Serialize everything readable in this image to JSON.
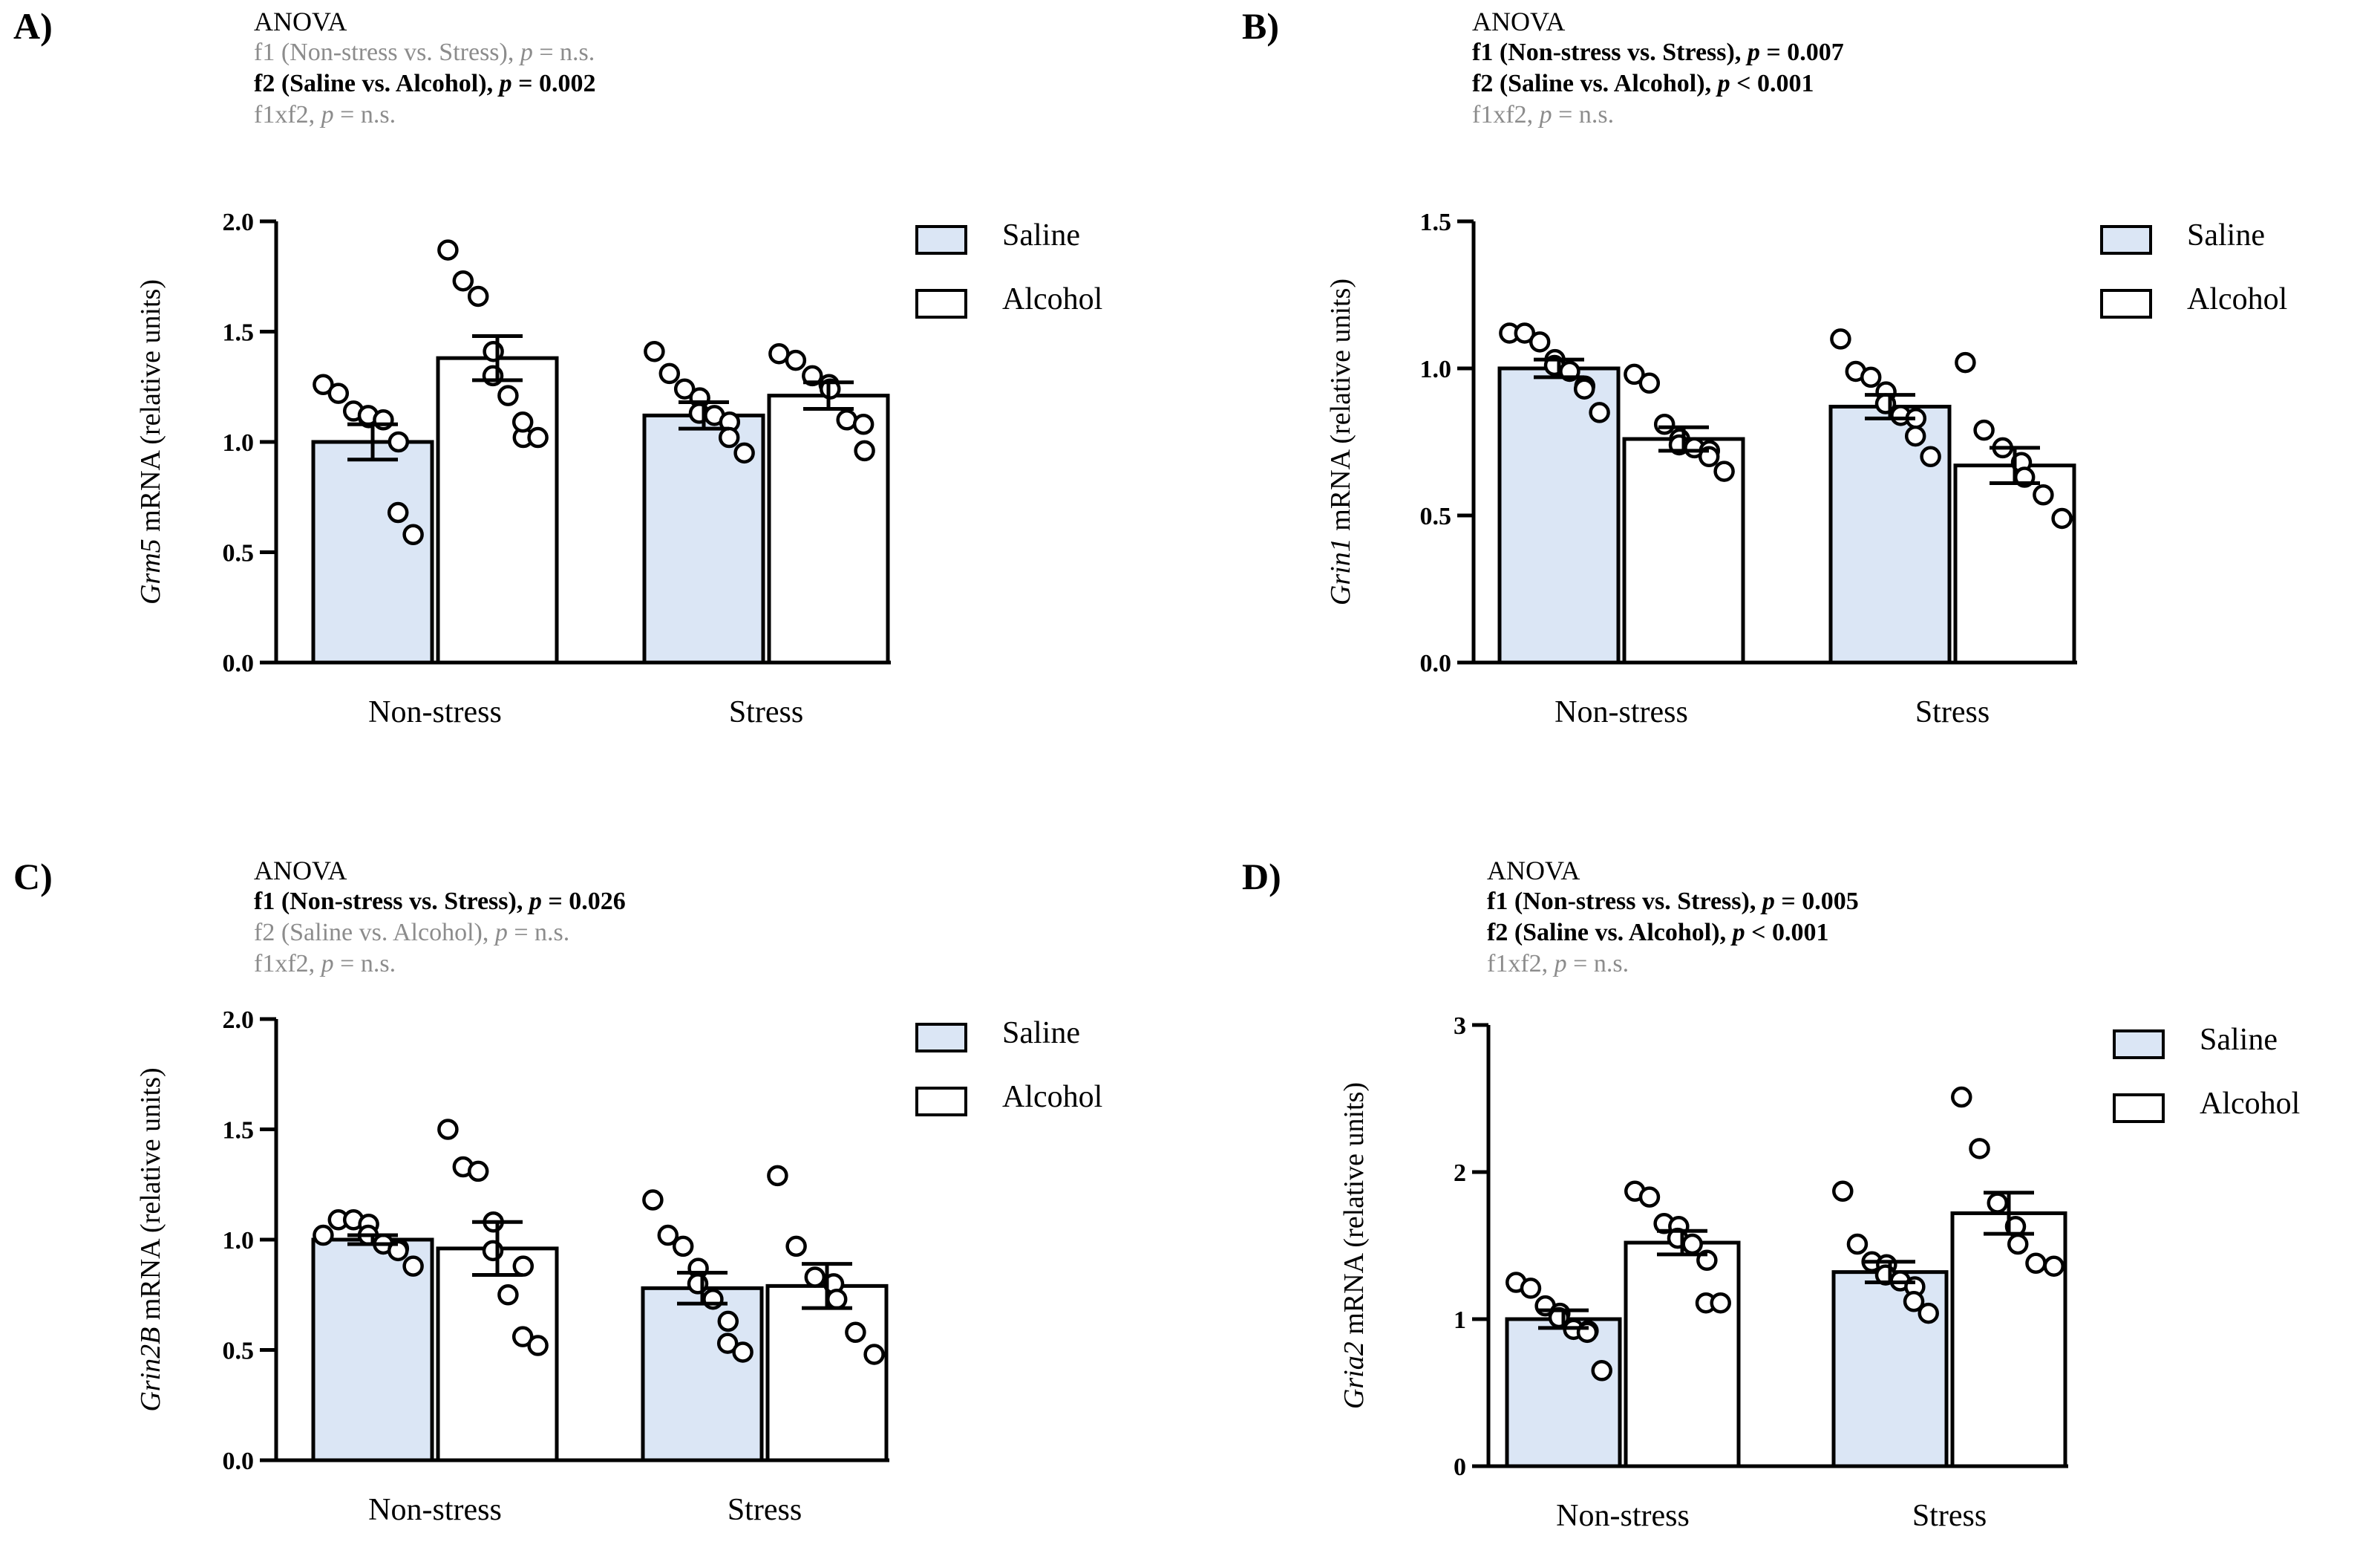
{
  "colors": {
    "saline": "#dbe6f5",
    "alcohol": "#ffffff",
    "stroke": "#000000",
    "ns_text": "#8c8c8c"
  },
  "chart_data": [
    {
      "panel": "A)",
      "type": "bar",
      "title": "ANOVA",
      "anova": [
        {
          "label": "f1 (Non-stress vs. Stress), ",
          "p_prefix": "p",
          "p_value": " = n.s.",
          "significant": false
        },
        {
          "label": "f2 (Saline vs. Alcohol), ",
          "p_prefix": "p",
          "p_value": " = 0.002",
          "significant": true
        },
        {
          "label": "f1xf2, ",
          "p_prefix": "p",
          "p_value": " = n.s.",
          "significant": false
        }
      ],
      "ylabel_gene": "Grm5",
      "ylabel_rest": " mRNA (relative units)",
      "ylim": [
        0,
        2.0
      ],
      "yticks": [
        0.0,
        0.5,
        1.0,
        1.5,
        2.0
      ],
      "ytick_labels": [
        "0.0",
        "0.5",
        "1.0",
        "1.5",
        "2.0"
      ],
      "categories": [
        "Non-stress",
        "Stress"
      ],
      "legend": [
        "Saline",
        "Alcohol"
      ],
      "series": [
        {
          "name": "Saline",
          "values": [
            1.0,
            1.12
          ],
          "sem": [
            0.08,
            0.06
          ],
          "points": [
            [
              1.26,
              1.22,
              1.14,
              1.11,
              1.12,
              1.1,
              1.0,
              0.68,
              0.58
            ],
            [
              1.41,
              1.31,
              1.24,
              1.2,
              1.13,
              1.12,
              1.09,
              1.02,
              0.95
            ]
          ]
        },
        {
          "name": "Alcohol",
          "values": [
            1.38,
            1.21
          ],
          "sem": [
            0.1,
            0.06
          ],
          "points": [
            [
              1.87,
              1.73,
              1.66,
              1.41,
              1.3,
              1.21,
              1.02,
              1.09,
              1.02
            ],
            [
              1.4,
              1.37,
              1.3,
              1.26,
              1.24,
              1.1,
              1.08,
              0.96
            ]
          ]
        }
      ]
    },
    {
      "panel": "B)",
      "type": "bar",
      "title": "ANOVA",
      "anova": [
        {
          "label": "f1 (Non-stress vs. Stress), ",
          "p_prefix": "p",
          "p_value": " = 0.007",
          "significant": true
        },
        {
          "label": "f2 (Saline vs. Alcohol), ",
          "p_prefix": "p",
          "p_value": " < 0.001",
          "significant": true
        },
        {
          "label": "f1xf2, ",
          "p_prefix": "p",
          "p_value": " = n.s.",
          "significant": false
        }
      ],
      "ylabel_gene": "Grin1",
      "ylabel_rest": " mRNA (relative units)",
      "ylim": [
        0,
        1.5
      ],
      "yticks": [
        0.0,
        0.5,
        1.0,
        1.5
      ],
      "ytick_labels": [
        "0.0",
        "0.5",
        "1.0",
        "1.5"
      ],
      "categories": [
        "Non-stress",
        "Stress"
      ],
      "legend": [
        "Saline",
        "Alcohol"
      ],
      "series": [
        {
          "name": "Saline",
          "values": [
            1.0,
            0.87
          ],
          "sem": [
            0.03,
            0.04
          ],
          "points": [
            [
              1.12,
              1.12,
              1.09,
              1.03,
              1.01,
              0.99,
              0.94,
              0.93,
              0.85
            ],
            [
              1.1,
              0.99,
              0.97,
              0.92,
              0.88,
              0.84,
              0.83,
              0.77,
              0.7
            ]
          ]
        },
        {
          "name": "Alcohol",
          "values": [
            0.76,
            0.67
          ],
          "sem": [
            0.04,
            0.06
          ],
          "points": [
            [
              0.98,
              0.95,
              0.81,
              0.76,
              0.74,
              0.73,
              0.72,
              0.7,
              0.65
            ],
            [
              1.02,
              0.79,
              0.73,
              0.68,
              0.63,
              0.57,
              0.49
            ]
          ]
        }
      ]
    },
    {
      "panel": "C)",
      "type": "bar",
      "title": "ANOVA",
      "anova": [
        {
          "label": "f1 (Non-stress vs. Stress), ",
          "p_prefix": "p",
          "p_value": " = 0.026",
          "significant": true
        },
        {
          "label": "f2 (Saline vs. Alcohol), ",
          "p_prefix": "p",
          "p_value": " = n.s.",
          "significant": false
        },
        {
          "label": "f1xf2, ",
          "p_prefix": "p",
          "p_value": " = n.s.",
          "significant": false
        }
      ],
      "ylabel_gene": "Grin2B",
      "ylabel_rest": " mRNA (relative units)",
      "ylim": [
        0,
        2.0
      ],
      "yticks": [
        0.0,
        0.5,
        1.0,
        1.5,
        2.0
      ],
      "ytick_labels": [
        "0.0",
        "0.5",
        "1.0",
        "1.5",
        "2.0"
      ],
      "categories": [
        "Non-stress",
        "Stress"
      ],
      "legend": [
        "Saline",
        "Alcohol"
      ],
      "series": [
        {
          "name": "Saline",
          "values": [
            1.0,
            0.78
          ],
          "sem": [
            0.02,
            0.07
          ],
          "points": [
            [
              1.02,
              1.09,
              1.09,
              1.07,
              1.02,
              0.98,
              0.96,
              0.95,
              0.88
            ],
            [
              1.18,
              1.02,
              0.97,
              0.87,
              0.8,
              0.73,
              0.63,
              0.53,
              0.49
            ]
          ]
        },
        {
          "name": "Alcohol",
          "values": [
            0.96,
            0.79
          ],
          "sem": [
            0.12,
            0.1
          ],
          "points": [
            [
              1.5,
              1.33,
              1.31,
              1.08,
              0.95,
              0.75,
              0.88,
              0.56,
              0.52
            ],
            [
              1.29,
              0.97,
              0.83,
              0.8,
              0.73,
              0.58,
              0.48
            ]
          ]
        }
      ]
    },
    {
      "panel": "D)",
      "type": "bar",
      "title": "ANOVA",
      "anova": [
        {
          "label": "f1 (Non-stress vs. Stress), ",
          "p_prefix": "p",
          "p_value": " = 0.005",
          "significant": true
        },
        {
          "label": "f2 (Saline vs. Alcohol), ",
          "p_prefix": "p",
          "p_value": " < 0.001",
          "significant": true
        },
        {
          "label": "f1xf2, ",
          "p_prefix": "p",
          "p_value": " = n.s.",
          "significant": false
        }
      ],
      "ylabel_gene": "Gria2",
      "ylabel_rest": " mRNA (relative units)",
      "ylim": [
        0,
        3
      ],
      "yticks": [
        0,
        1,
        2,
        3
      ],
      "ytick_labels": [
        "0",
        "1",
        "2",
        "3"
      ],
      "categories": [
        "Non-stress",
        "Stress"
      ],
      "legend": [
        "Saline",
        "Alcohol"
      ],
      "series": [
        {
          "name": "Saline",
          "values": [
            1.0,
            1.32
          ],
          "sem": [
            0.06,
            0.07
          ],
          "points": [
            [
              1.25,
              1.21,
              1.09,
              1.04,
              1.01,
              0.93,
              0.92,
              0.91,
              0.65
            ],
            [
              1.87,
              1.51,
              1.39,
              1.37,
              1.3,
              1.26,
              1.22,
              1.12,
              1.04
            ]
          ]
        },
        {
          "name": "Alcohol",
          "values": [
            1.52,
            1.72
          ],
          "sem": [
            0.08,
            0.14
          ],
          "points": [
            [
              1.87,
              1.83,
              1.65,
              1.63,
              1.55,
              1.51,
              1.4,
              1.11,
              1.11
            ],
            [
              2.51,
              2.16,
              1.79,
              1.63,
              1.51,
              1.38,
              1.36
            ]
          ]
        }
      ]
    }
  ]
}
